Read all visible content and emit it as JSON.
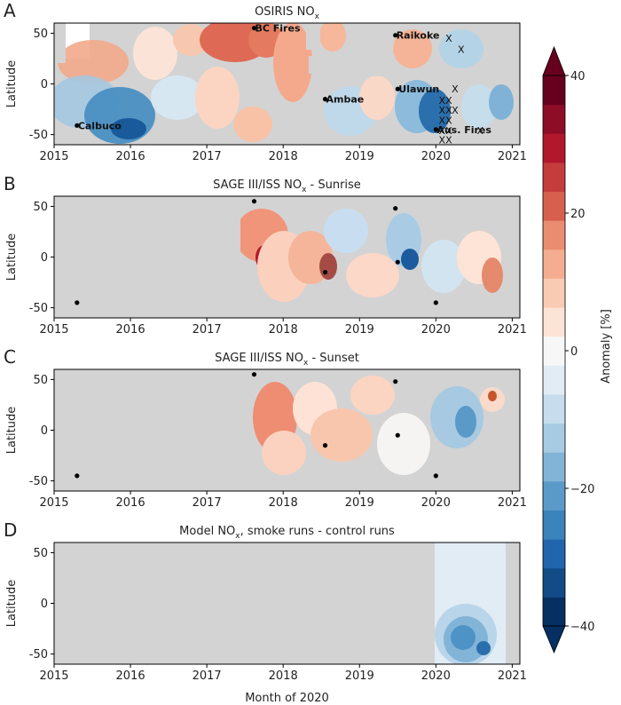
{
  "figure": {
    "xlabel": "Month of 2020",
    "colorbar_label": "Anomaly [%]",
    "colorbar_ticks": [
      40,
      20,
      0,
      -20,
      -40
    ],
    "colorbar_range": [
      -40,
      40
    ],
    "colors": {
      "background": "#d3d3d3",
      "positive": "#67001f",
      "negative": "#053061"
    }
  },
  "chart_data": [
    {
      "type": "heatmap",
      "panel": "A",
      "title_main": "OSIRIS NO",
      "title_sub": "x",
      "title_rest": "",
      "ylabel": "Latitude",
      "x_ticks": [
        "2015",
        "2016",
        "2017",
        "2018",
        "2019",
        "2020",
        "2021"
      ],
      "xlim": [
        2015,
        2021.1
      ],
      "y_ticks": [
        50,
        0,
        -50
      ],
      "ylim": [
        -60,
        60
      ],
      "events": [
        {
          "name": "Calbuco",
          "x": 2015.3,
          "y": -41
        },
        {
          "name": "BC Fires",
          "x": 2017.62,
          "y": 55
        },
        {
          "name": "Ambae",
          "x": 2018.55,
          "y": -15
        },
        {
          "name": "Raikoke",
          "x": 2019.47,
          "y": 48
        },
        {
          "name": "Ulawun",
          "x": 2019.5,
          "y": -5
        },
        {
          "name": "Aus. Fires",
          "x": 2020.0,
          "y": -45
        }
      ],
      "x_markers": [
        {
          "x": 2020.17,
          "y": 45
        },
        {
          "x": 2020.33,
          "y": 34
        },
        {
          "x": 2020.25,
          "y": -5
        },
        {
          "x": 2020.08,
          "y": -16
        },
        {
          "x": 2020.17,
          "y": -16
        },
        {
          "x": 2020.08,
          "y": -26
        },
        {
          "x": 2020.17,
          "y": -26
        },
        {
          "x": 2020.25,
          "y": -26
        },
        {
          "x": 2020.08,
          "y": -36
        },
        {
          "x": 2020.17,
          "y": -36
        },
        {
          "x": 2020.08,
          "y": -46
        },
        {
          "x": 2020.17,
          "y": -46
        },
        {
          "x": 2020.08,
          "y": -55
        },
        {
          "x": 2020.17,
          "y": -55
        },
        {
          "x": 2020.58,
          "y": -46
        }
      ]
    },
    {
      "type": "heatmap",
      "panel": "B",
      "title_main": "SAGE III/ISS NO",
      "title_sub": "x",
      "title_rest": " - Sunrise",
      "ylabel": "Latitude",
      "x_ticks": [
        "2015",
        "2016",
        "2017",
        "2018",
        "2019",
        "2020",
        "2021"
      ],
      "xlim": [
        2015,
        2021.1
      ],
      "y_ticks": [
        50,
        0,
        -50
      ],
      "ylim": [
        -60,
        60
      ],
      "events": [
        {
          "x": 2015.3,
          "y": -45
        },
        {
          "x": 2017.62,
          "y": 55
        },
        {
          "x": 2018.55,
          "y": -15
        },
        {
          "x": 2019.47,
          "y": 48
        },
        {
          "x": 2019.5,
          "y": -5
        },
        {
          "x": 2020.0,
          "y": -45
        }
      ]
    },
    {
      "type": "heatmap",
      "panel": "C",
      "title_main": "SAGE III/ISS NO",
      "title_sub": "x",
      "title_rest": " - Sunset",
      "ylabel": "Latitude",
      "x_ticks": [
        "2015",
        "2016",
        "2017",
        "2018",
        "2019",
        "2020",
        "2021"
      ],
      "xlim": [
        2015,
        2021.1
      ],
      "y_ticks": [
        50,
        0,
        -50
      ],
      "ylim": [
        -60,
        60
      ],
      "events": [
        {
          "x": 2015.3,
          "y": -45
        },
        {
          "x": 2017.62,
          "y": 55
        },
        {
          "x": 2018.55,
          "y": -15
        },
        {
          "x": 2019.47,
          "y": 48
        },
        {
          "x": 2019.5,
          "y": -5
        },
        {
          "x": 2020.0,
          "y": -45
        }
      ]
    },
    {
      "type": "heatmap",
      "panel": "D",
      "title_main": "Model NO",
      "title_sub": "x",
      "title_rest": ", smoke runs - control runs",
      "ylabel": "Latitude",
      "x_ticks": [
        "2015",
        "2016",
        "2017",
        "2018",
        "2019",
        "2020",
        "2021"
      ],
      "xlim": [
        2015,
        2021.1
      ],
      "y_ticks": [
        50,
        0,
        -50
      ],
      "ylim": [
        -60,
        60
      ],
      "events": []
    }
  ]
}
